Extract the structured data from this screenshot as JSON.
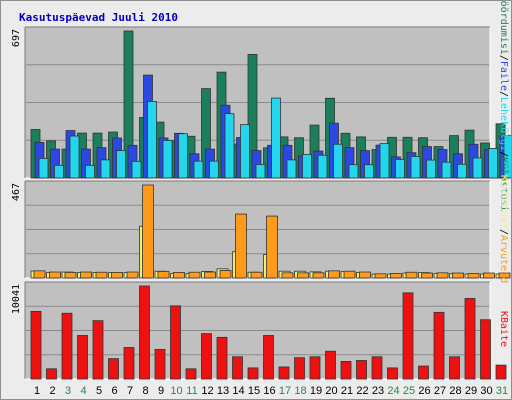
{
  "title": "Kasutuspäevad Juuli 2010",
  "colors": {
    "background": "#ececec",
    "plot": "#c0c0c0",
    "visits": "#1b7f5c",
    "pages": "#2b49e2",
    "files": "#22d6ee",
    "hits": "#f0f070",
    "kbytes": "#ee1111",
    "weekend": "#1f8a4c",
    "weekday": "#000000"
  },
  "chart_data": {
    "type": "bar",
    "title": "Kasutuspäevad Juuli 2010",
    "xlabel": "",
    "categories": [
      "1",
      "2",
      "3",
      "4",
      "5",
      "6",
      "7",
      "8",
      "9",
      "10",
      "11",
      "12",
      "13",
      "14",
      "15",
      "16",
      "17",
      "18",
      "19",
      "20",
      "21",
      "22",
      "23",
      "24",
      "25",
      "26",
      "27",
      "28",
      "29",
      "30",
      "31"
    ],
    "weekend": [
      false,
      false,
      true,
      true,
      false,
      false,
      false,
      false,
      false,
      true,
      true,
      false,
      false,
      false,
      false,
      false,
      true,
      true,
      false,
      false,
      false,
      false,
      false,
      true,
      true,
      false,
      false,
      false,
      false,
      false,
      true
    ],
    "panels": [
      {
        "id": "traffic",
        "ymax_label": "697",
        "ylim": [
          0,
          697
        ],
        "legend": [
          "Pöördumisi",
          "/",
          "Faile",
          "/",
          "Lehekülgi",
          "/",
          "Külastusi"
        ],
        "series": [
          {
            "name": "Pöördumisi",
            "color": "#1b7f5c",
            "values": [
              230,
              176,
              137,
              213,
              213,
              218,
              697,
              287,
              265,
              176,
              198,
              424,
              502,
              161,
              586,
              143,
              195,
              191,
              251,
              378,
              212,
              195,
              135,
              193,
              193,
              191,
              149,
              201,
              227,
              166,
              257
            ]
          },
          {
            "name": "Faile",
            "color": "#2b49e2",
            "values": [
              169,
              137,
              225,
              137,
              144,
              190,
              155,
              488,
              190,
              212,
              115,
              137,
              345,
              192,
              130,
              155,
              155,
              105,
              128,
              260,
              144,
              130,
              156,
              100,
              120,
              149,
              135,
              115,
              160,
              135,
              199
            ]
          },
          {
            "name": "Lehekülgi",
            "color": "#22d6ee",
            "values": [
              93,
              60,
              199,
              60,
              86,
              130,
              79,
              363,
              178,
              210,
              80,
              80,
              305,
              253,
              64,
              379,
              86,
              112,
              108,
              160,
              63,
              63,
              163,
              88,
              102,
              85,
              75,
              65,
              95,
              140,
              201
            ]
          }
        ]
      },
      {
        "id": "hits",
        "ymax_label": "467",
        "ylim": [
          0,
          467
        ],
        "legend": [
          "Külastusi",
          "/",
          "Arvuteid"
        ],
        "series": [
          {
            "name": "Külastusi",
            "color": "#f0f070",
            "values": [
              35,
              28,
              30,
              28,
              28,
              27,
              27,
              260,
              34,
              22,
              22,
              33,
              46,
              132,
              29,
              118,
              34,
              34,
              31,
              34,
              32,
              28,
              20,
              20,
              25,
              27,
              22,
              22,
              20,
              20,
              20
            ]
          },
          {
            "name": "Arvuteid",
            "color": "#ff9a1a",
            "values": [
              36,
              30,
              28,
              30,
              29,
              28,
              30,
              467,
              33,
              28,
              29,
              30,
              38,
              321,
              29,
              311,
              26,
              26,
              26,
              36,
              34,
              30,
              21,
              23,
              29,
              25,
              26,
              25,
              23,
              25,
              25
            ]
          }
        ]
      },
      {
        "id": "kbytes",
        "ymax_label": "10041",
        "ylim": [
          0,
          10041
        ],
        "legend": [
          "KBaite"
        ],
        "series": [
          {
            "name": "KBaite",
            "color": "#ee1111",
            "values": [
              7300,
              1100,
              7100,
              4700,
              6300,
              2200,
              3400,
              10041,
              3200,
              7900,
              1100,
              4900,
              4500,
              2400,
              1200,
              4700,
              1300,
              2300,
              2400,
              3000,
              1900,
              2000,
              2400,
              1200,
              9300,
              1400,
              7200,
              2400,
              8700,
              6400,
              1500
            ]
          }
        ]
      }
    ]
  }
}
